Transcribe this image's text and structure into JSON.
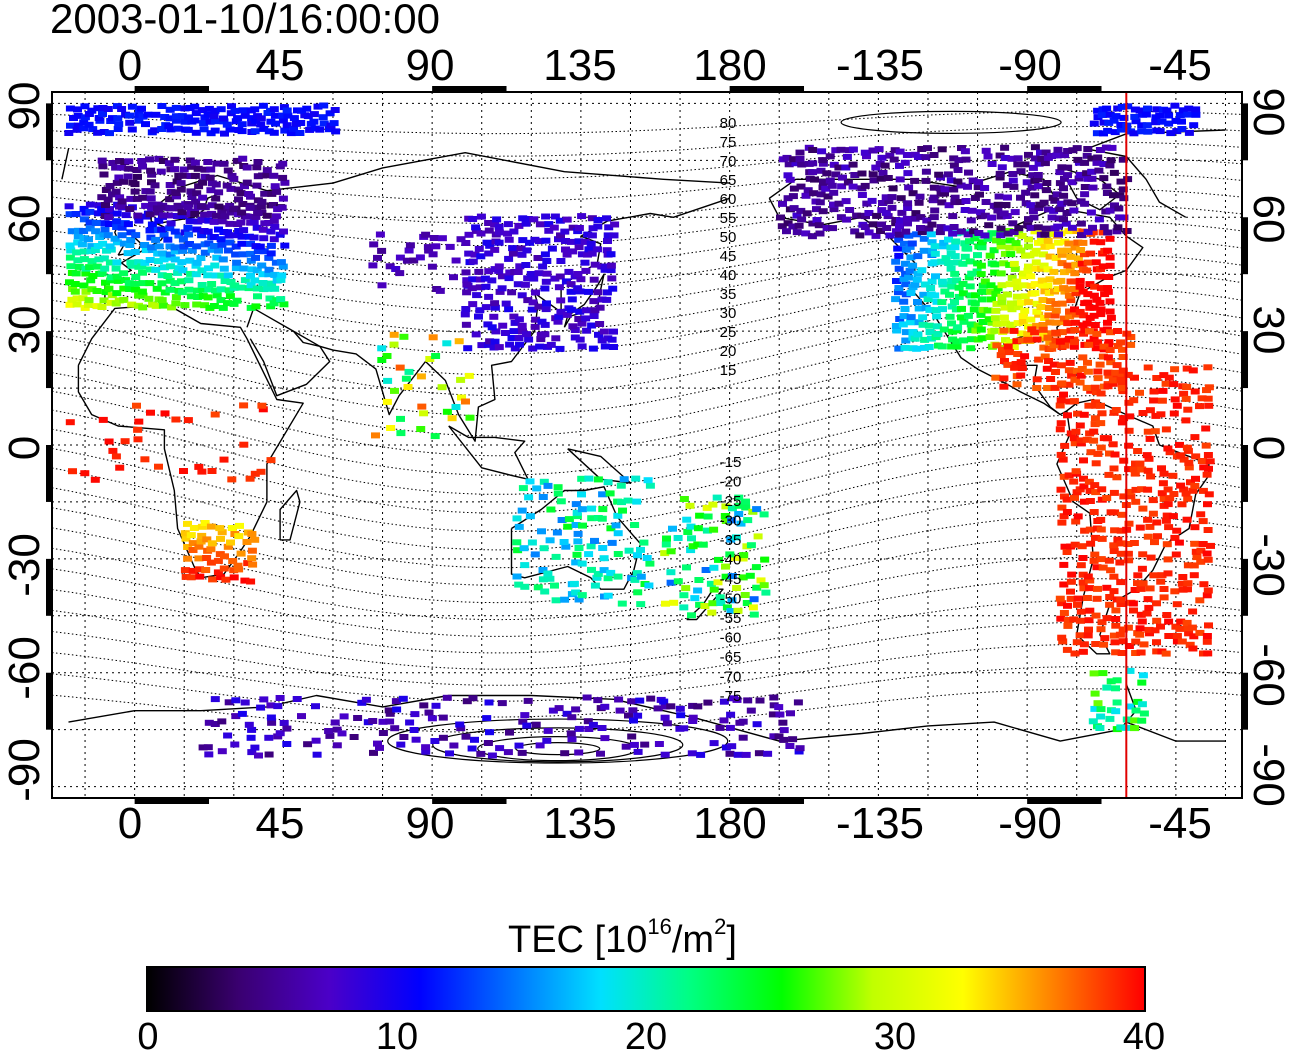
{
  "title": "2003-01-10/16:00:00",
  "x_ticks": [
    "0",
    "45",
    "90",
    "135",
    "180",
    "-135",
    "-90",
    "-45"
  ],
  "y_ticks": [
    "90",
    "60",
    "30",
    "0",
    "-30",
    "-60",
    "-90"
  ],
  "contour_labels_north": [
    "80",
    "75",
    "70",
    "65",
    "60",
    "55",
    "50",
    "45",
    "40",
    "35",
    "30",
    "25",
    "20",
    "15"
  ],
  "contour_labels_south": [
    "-15",
    "-20",
    "-25",
    "-30",
    "-35",
    "-40",
    "-45",
    "-50",
    "-55",
    "-60",
    "-65",
    "-70",
    "-75"
  ],
  "colorbar": {
    "title": "TEC  [10",
    "title_sup1": "16",
    "title_mid": "/m",
    "title_sup2": "2",
    "title_end": "]",
    "labels": [
      "0",
      "10",
      "20",
      "30",
      "40"
    ],
    "colors": [
      "#000000",
      "#3a0070",
      "#4b00c8",
      "#0000ff",
      "#0070ff",
      "#00e0ff",
      "#00ff80",
      "#00ff00",
      "#c0ff00",
      "#ffff00",
      "#ff8000",
      "#ff0000"
    ]
  },
  "marker_line_longitude": -60,
  "map_extent": {
    "lon_min": -25,
    "lon_max": 335,
    "lat_min": -93,
    "lat_max": 93
  }
}
